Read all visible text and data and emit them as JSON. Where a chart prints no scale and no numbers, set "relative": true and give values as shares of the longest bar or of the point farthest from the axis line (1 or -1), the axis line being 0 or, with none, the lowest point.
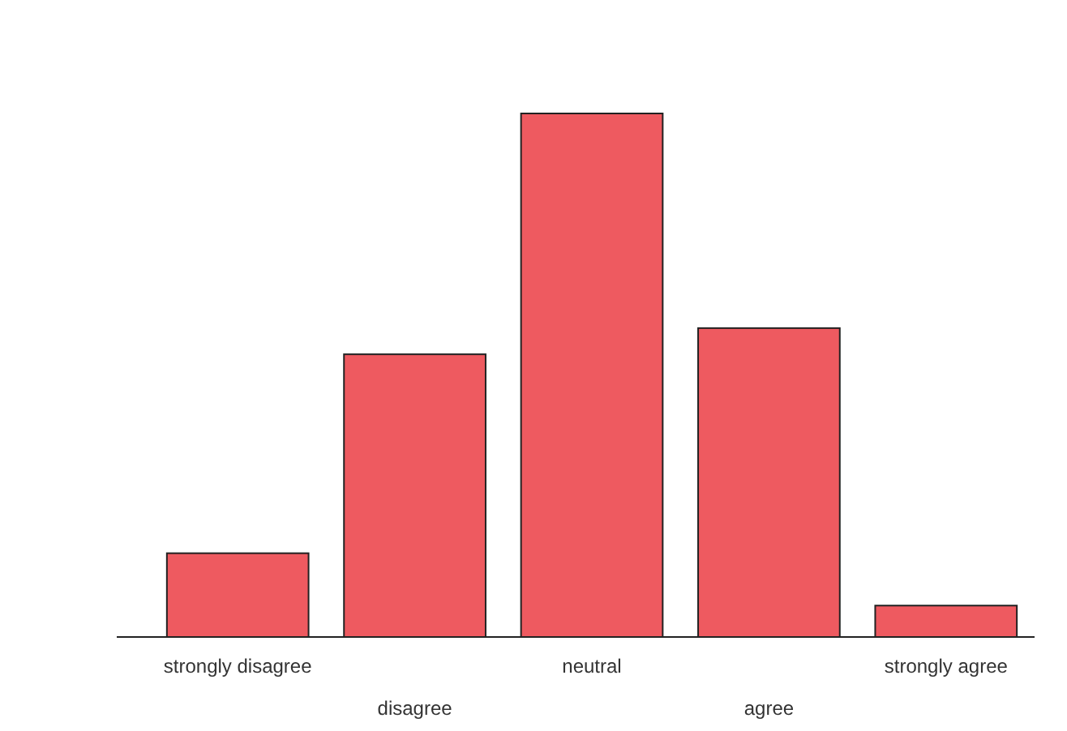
{
  "chart_data": {
    "type": "bar",
    "relative": true,
    "categories": [
      "strongly disagree",
      "disagree",
      "neutral",
      "agree",
      "strongly agree"
    ],
    "values": [
      0.16,
      0.54,
      1,
      0.59,
      0.06
    ],
    "color": "#ee5a60"
  }
}
